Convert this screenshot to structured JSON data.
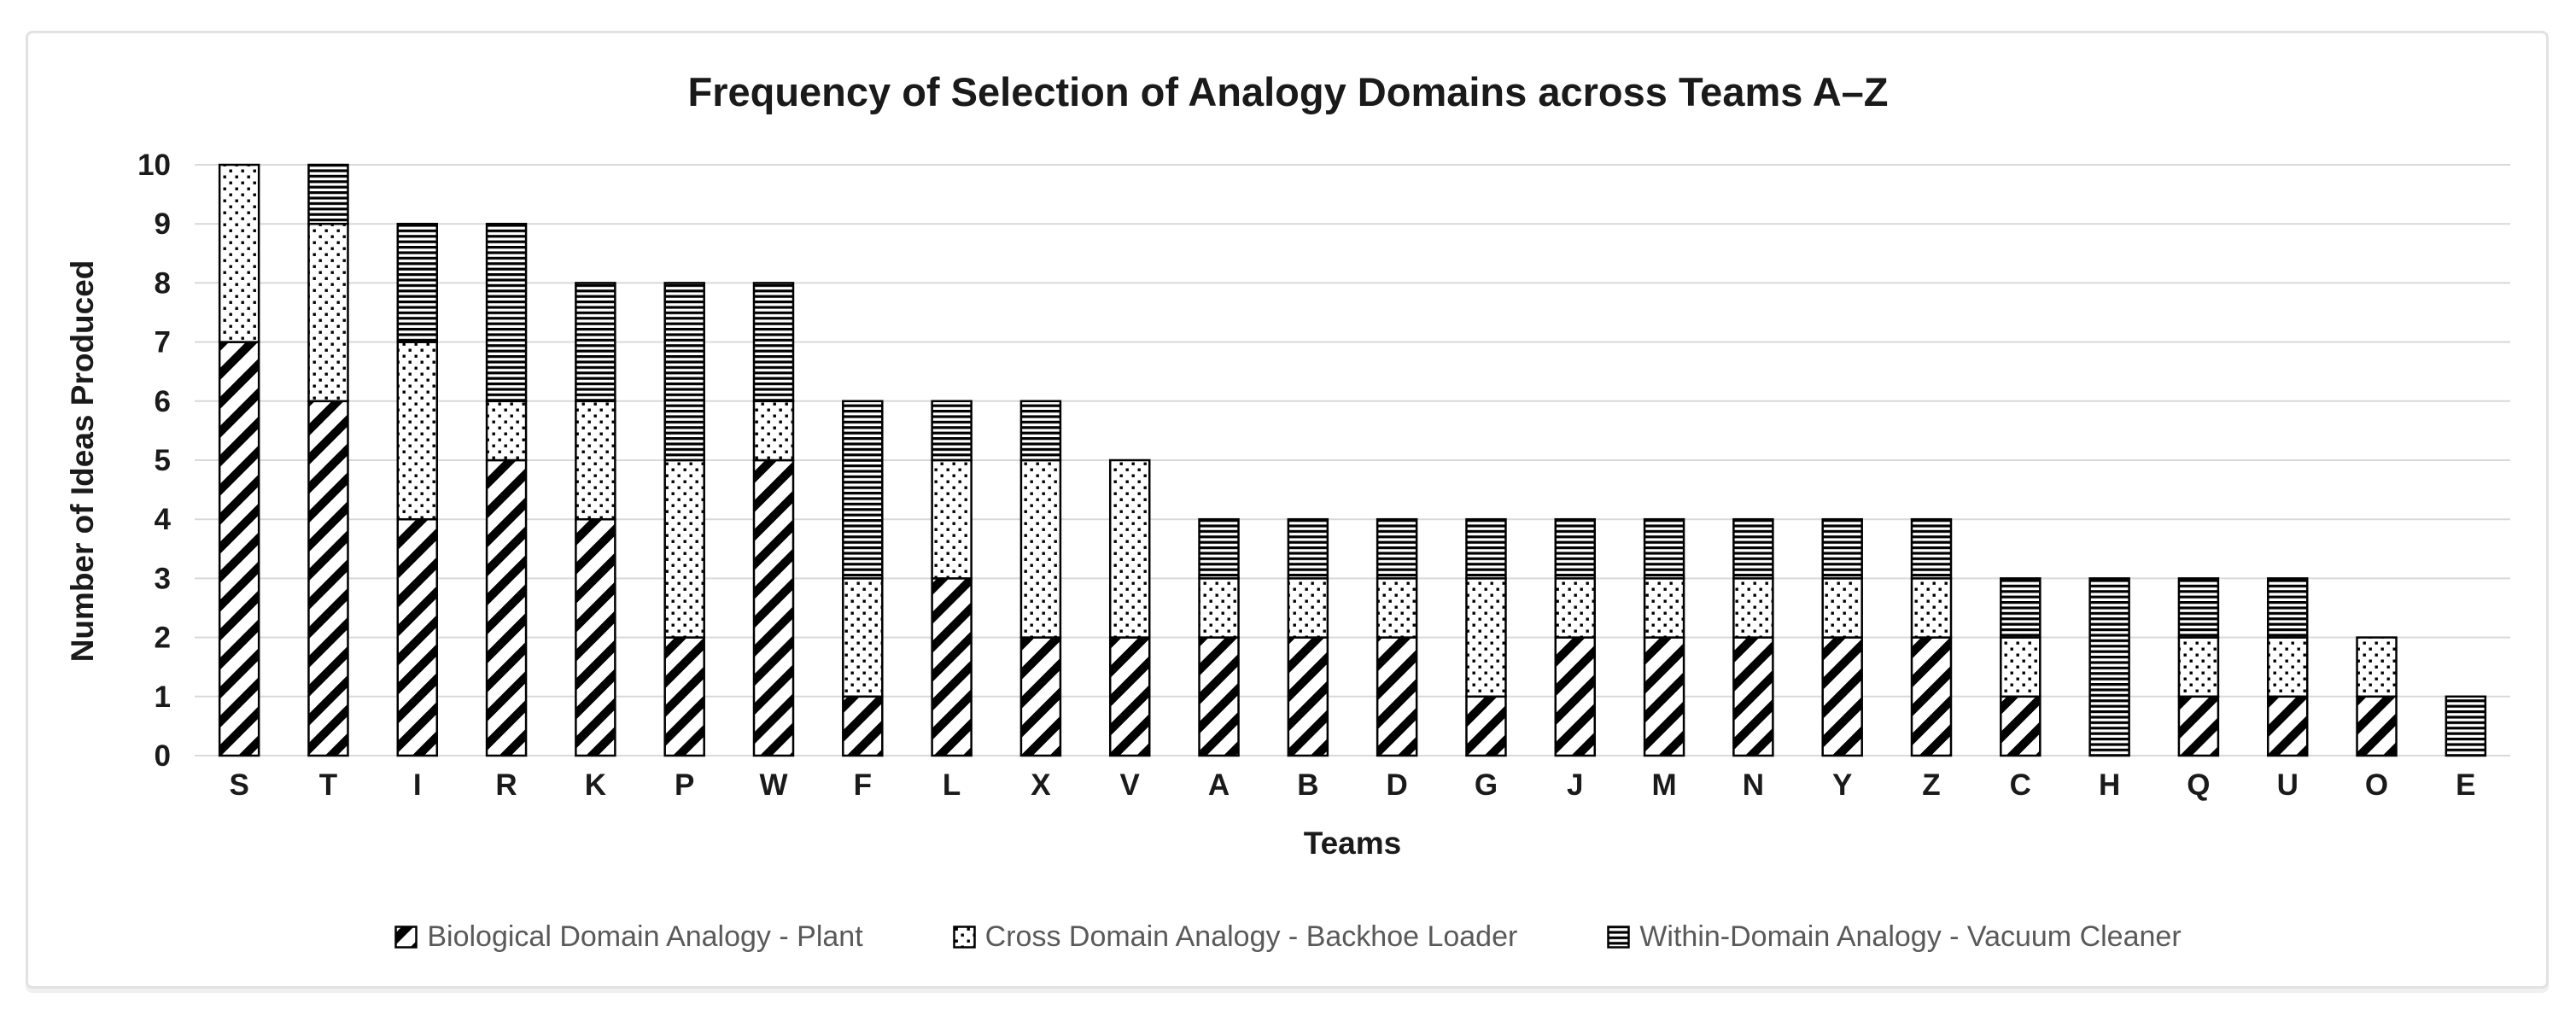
{
  "chart_data": {
    "type": "bar",
    "stacked": true,
    "title": "Frequency of Selection of Analogy Domains across Teams A–Z",
    "xlabel": "Teams",
    "ylabel": "Number of Ideas Produced",
    "ylim": [
      0,
      10
    ],
    "yticks": [
      0,
      1,
      2,
      3,
      4,
      5,
      6,
      7,
      8,
      9,
      10
    ],
    "grid": "horizontal",
    "legend_position": "bottom",
    "categories": [
      "S",
      "T",
      "I",
      "R",
      "K",
      "P",
      "W",
      "F",
      "L",
      "X",
      "V",
      "A",
      "B",
      "D",
      "G",
      "J",
      "M",
      "N",
      "Y",
      "Z",
      "C",
      "H",
      "Q",
      "U",
      "O",
      "E"
    ],
    "series": [
      {
        "name": "Biological Domain Analogy - Plant",
        "pattern": "diagonal-stripes",
        "values": [
          7,
          6,
          4,
          5,
          4,
          2,
          5,
          1,
          3,
          2,
          2,
          2,
          2,
          2,
          1,
          2,
          2,
          2,
          2,
          2,
          1,
          0,
          1,
          1,
          1,
          0
        ]
      },
      {
        "name": "Cross Domain Analogy - Backhoe Loader",
        "pattern": "dots",
        "values": [
          3,
          3,
          3,
          1,
          2,
          3,
          1,
          2,
          2,
          3,
          3,
          1,
          1,
          1,
          2,
          1,
          1,
          1,
          1,
          1,
          1,
          0,
          1,
          1,
          1,
          0
        ]
      },
      {
        "name": "Within-Domain Analogy - Vacuum Cleaner",
        "pattern": "horizontal-lines",
        "values": [
          0,
          1,
          2,
          3,
          2,
          3,
          2,
          3,
          1,
          1,
          0,
          1,
          1,
          1,
          1,
          1,
          1,
          1,
          1,
          1,
          1,
          3,
          1,
          1,
          0,
          1
        ]
      }
    ]
  },
  "colors": {
    "grid": "#d9d9d9",
    "bar_outline": "#000000",
    "pattern_ink": "#000000",
    "title_text": "#1a1a1a",
    "axis_text": "#1a1a1a",
    "legend_text": "#595959",
    "frame_border": "#e2e2e2",
    "background": "#ffffff"
  }
}
